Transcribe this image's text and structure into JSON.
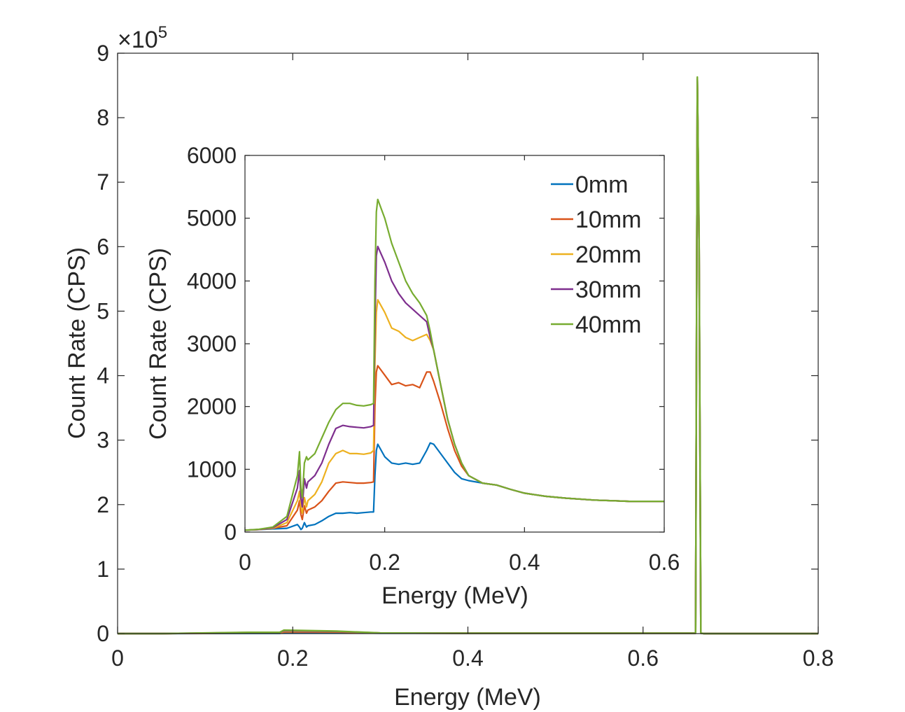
{
  "chart_data": [
    {
      "type": "line",
      "xlabel": "Energy (MeV)",
      "ylabel": "Count Rate (CPS)",
      "xlim": [
        0,
        0.8
      ],
      "ylim": [
        0,
        9
      ],
      "x_ticks": [
        "0",
        "0.2",
        "0.4",
        "0.6",
        "0.8"
      ],
      "y_ticks": [
        "0",
        "1",
        "2",
        "3",
        "4",
        "5",
        "6",
        "7",
        "8",
        "9"
      ],
      "y_multiplier_text": "×10",
      "y_multiplier_exp": "5",
      "grid": false,
      "legend": false,
      "series": [
        {
          "name": "0mm",
          "color": "#0072BD",
          "x": [
            0,
            0.05,
            0.1,
            0.15,
            0.185,
            0.19,
            0.25,
            0.3,
            0.4,
            0.5,
            0.6,
            0.66,
            0.662,
            0.664,
            0.666,
            0.67,
            0.8
          ],
          "y": [
            0,
            0,
            0.002,
            0.003,
            0.003,
            0.014,
            0.013,
            0.007,
            0.005,
            0.005,
            0.005,
            0.005,
            8.6,
            6.0,
            0.005,
            0,
            0
          ]
        },
        {
          "name": "10mm",
          "color": "#D95319",
          "x": [
            0,
            0.05,
            0.1,
            0.15,
            0.185,
            0.19,
            0.25,
            0.3,
            0.4,
            0.5,
            0.6,
            0.66,
            0.662,
            0.664,
            0.666,
            0.67,
            0.8
          ],
          "y": [
            0,
            0,
            0.004,
            0.008,
            0.008,
            0.026,
            0.024,
            0.008,
            0.005,
            0.005,
            0.005,
            0.005,
            8.6,
            6.0,
            0.005,
            0,
            0
          ]
        },
        {
          "name": "20mm",
          "color": "#EDB120",
          "x": [
            0,
            0.05,
            0.1,
            0.15,
            0.185,
            0.19,
            0.25,
            0.3,
            0.4,
            0.5,
            0.6,
            0.66,
            0.662,
            0.664,
            0.666,
            0.67,
            0.8
          ],
          "y": [
            0,
            0,
            0.006,
            0.012,
            0.012,
            0.036,
            0.031,
            0.009,
            0.005,
            0.005,
            0.005,
            0.005,
            8.6,
            6.0,
            0.005,
            0,
            0
          ]
        },
        {
          "name": "30mm",
          "color": "#7E2F8E",
          "x": [
            0,
            0.05,
            0.1,
            0.15,
            0.185,
            0.19,
            0.25,
            0.3,
            0.4,
            0.5,
            0.6,
            0.66,
            0.662,
            0.664,
            0.666,
            0.67,
            0.8
          ],
          "y": [
            0,
            0,
            0.008,
            0.016,
            0.016,
            0.045,
            0.034,
            0.009,
            0.005,
            0.005,
            0.005,
            0.005,
            8.6,
            6.0,
            0.005,
            0,
            0
          ]
        },
        {
          "name": "40mm",
          "color": "#77AC30",
          "x": [
            0,
            0.05,
            0.1,
            0.15,
            0.185,
            0.19,
            0.25,
            0.3,
            0.4,
            0.5,
            0.6,
            0.66,
            0.662,
            0.664,
            0.666,
            0.67,
            0.8
          ],
          "y": [
            0,
            0,
            0.01,
            0.02,
            0.02,
            0.053,
            0.038,
            0.01,
            0.005,
            0.005,
            0.005,
            0.005,
            8.63,
            6.2,
            0.005,
            0,
            0
          ]
        }
      ]
    },
    {
      "type": "line",
      "xlabel": "Energy (MeV)",
      "ylabel": "Count Rate (CPS)",
      "xlim": [
        0,
        0.6
      ],
      "ylim": [
        0,
        6000
      ],
      "x_ticks": [
        "0",
        "0.2",
        "0.4",
        "0.6"
      ],
      "y_ticks": [
        "0",
        "1000",
        "2000",
        "3000",
        "4000",
        "5000",
        "6000"
      ],
      "grid": false,
      "legend_position": "top-right",
      "series": [
        {
          "name": "0mm",
          "color": "#0072BD",
          "x": [
            0,
            0.02,
            0.04,
            0.06,
            0.075,
            0.078,
            0.08,
            0.082,
            0.085,
            0.088,
            0.09,
            0.1,
            0.11,
            0.12,
            0.13,
            0.14,
            0.15,
            0.16,
            0.17,
            0.18,
            0.184,
            0.186,
            0.188,
            0.19,
            0.2,
            0.21,
            0.22,
            0.23,
            0.24,
            0.25,
            0.26,
            0.265,
            0.27,
            0.28,
            0.29,
            0.3,
            0.31,
            0.32,
            0.34,
            0.36,
            0.38,
            0.4,
            0.43,
            0.46,
            0.5,
            0.55,
            0.6
          ],
          "y": [
            30,
            40,
            50,
            60,
            120,
            80,
            40,
            60,
            150,
            80,
            100,
            120,
            180,
            250,
            300,
            300,
            310,
            300,
            310,
            320,
            320,
            900,
            1300,
            1400,
            1200,
            1100,
            1080,
            1100,
            1080,
            1100,
            1300,
            1420,
            1400,
            1250,
            1100,
            950,
            850,
            820,
            780,
            750,
            680,
            620,
            570,
            540,
            510,
            490,
            490
          ]
        },
        {
          "name": "10mm",
          "color": "#D95319",
          "x": [
            0,
            0.02,
            0.04,
            0.06,
            0.075,
            0.078,
            0.08,
            0.082,
            0.085,
            0.088,
            0.09,
            0.1,
            0.11,
            0.12,
            0.13,
            0.14,
            0.15,
            0.16,
            0.17,
            0.18,
            0.184,
            0.186,
            0.188,
            0.19,
            0.2,
            0.21,
            0.22,
            0.23,
            0.24,
            0.25,
            0.26,
            0.265,
            0.27,
            0.28,
            0.29,
            0.3,
            0.31,
            0.32,
            0.34,
            0.36,
            0.38,
            0.4,
            0.43,
            0.46,
            0.5,
            0.55,
            0.6
          ],
          "y": [
            30,
            40,
            60,
            100,
            350,
            500,
            280,
            200,
            420,
            300,
            350,
            400,
            500,
            650,
            780,
            800,
            790,
            780,
            780,
            790,
            800,
            2000,
            2550,
            2650,
            2500,
            2350,
            2380,
            2330,
            2350,
            2300,
            2550,
            2550,
            2400,
            2050,
            1650,
            1300,
            1050,
            900,
            780,
            750,
            680,
            620,
            570,
            540,
            510,
            490,
            490
          ]
        },
        {
          "name": "20mm",
          "color": "#EDB120",
          "x": [
            0,
            0.02,
            0.04,
            0.06,
            0.075,
            0.078,
            0.08,
            0.082,
            0.085,
            0.088,
            0.09,
            0.1,
            0.11,
            0.12,
            0.13,
            0.14,
            0.15,
            0.16,
            0.17,
            0.18,
            0.184,
            0.186,
            0.188,
            0.19,
            0.2,
            0.21,
            0.22,
            0.23,
            0.24,
            0.25,
            0.26,
            0.265,
            0.27,
            0.28,
            0.29,
            0.3,
            0.31,
            0.32,
            0.34,
            0.36,
            0.38,
            0.4,
            0.43,
            0.46,
            0.5,
            0.55,
            0.6
          ],
          "y": [
            30,
            40,
            60,
            150,
            500,
            650,
            400,
            300,
            550,
            400,
            500,
            600,
            800,
            1100,
            1250,
            1300,
            1250,
            1250,
            1240,
            1260,
            1300,
            2700,
            3500,
            3700,
            3500,
            3250,
            3200,
            3100,
            3050,
            3100,
            3150,
            3050,
            2900,
            2350,
            1800,
            1400,
            1100,
            900,
            780,
            750,
            680,
            620,
            570,
            540,
            510,
            490,
            490
          ]
        },
        {
          "name": "30mm",
          "color": "#7E2F8E",
          "x": [
            0,
            0.02,
            0.04,
            0.06,
            0.075,
            0.078,
            0.08,
            0.082,
            0.085,
            0.088,
            0.09,
            0.1,
            0.11,
            0.12,
            0.13,
            0.14,
            0.15,
            0.16,
            0.17,
            0.18,
            0.184,
            0.186,
            0.188,
            0.19,
            0.2,
            0.21,
            0.22,
            0.23,
            0.24,
            0.25,
            0.26,
            0.265,
            0.27,
            0.28,
            0.29,
            0.3,
            0.31,
            0.32,
            0.34,
            0.36,
            0.38,
            0.4,
            0.43,
            0.46,
            0.5,
            0.55,
            0.6
          ],
          "y": [
            30,
            40,
            70,
            200,
            700,
            980,
            550,
            400,
            850,
            700,
            800,
            900,
            1100,
            1400,
            1650,
            1700,
            1680,
            1670,
            1660,
            1680,
            1700,
            3300,
            4400,
            4550,
            4300,
            4000,
            3800,
            3650,
            3550,
            3450,
            3350,
            3100,
            2900,
            2350,
            1800,
            1400,
            1100,
            900,
            780,
            750,
            680,
            620,
            570,
            540,
            510,
            490,
            490
          ]
        },
        {
          "name": "40mm",
          "color": "#77AC30",
          "x": [
            0,
            0.02,
            0.04,
            0.06,
            0.075,
            0.078,
            0.08,
            0.082,
            0.085,
            0.088,
            0.09,
            0.1,
            0.11,
            0.12,
            0.13,
            0.14,
            0.15,
            0.16,
            0.17,
            0.18,
            0.184,
            0.186,
            0.188,
            0.19,
            0.2,
            0.21,
            0.22,
            0.23,
            0.24,
            0.25,
            0.26,
            0.265,
            0.27,
            0.28,
            0.29,
            0.3,
            0.31,
            0.32,
            0.34,
            0.36,
            0.38,
            0.4,
            0.43,
            0.46,
            0.5,
            0.55,
            0.6
          ],
          "y": [
            30,
            45,
            80,
            250,
            900,
            1280,
            700,
            550,
            1100,
            1200,
            1150,
            1250,
            1500,
            1750,
            1950,
            2050,
            2050,
            2020,
            2010,
            2030,
            2050,
            4000,
            5100,
            5300,
            5000,
            4600,
            4300,
            4000,
            3800,
            3650,
            3450,
            3200,
            2900,
            2350,
            1800,
            1400,
            1100,
            900,
            780,
            750,
            680,
            620,
            570,
            540,
            510,
            490,
            490
          ]
        }
      ]
    }
  ]
}
